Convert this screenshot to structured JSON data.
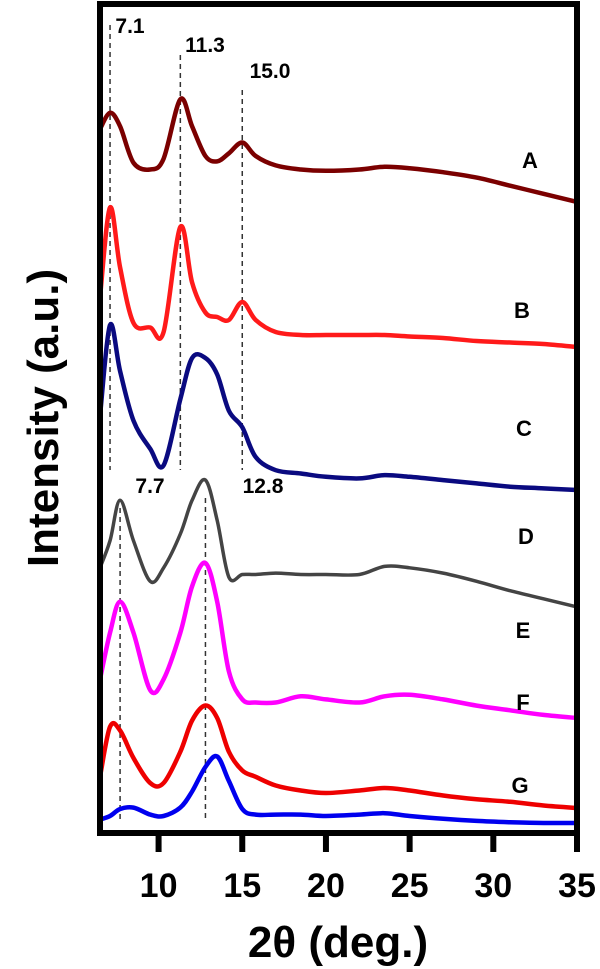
{
  "chart_data": {
    "type": "line",
    "title": "",
    "xlabel": "2θ (deg.)",
    "ylabel": "Intensity (a.u.)",
    "xlim": [
      6.5,
      35
    ],
    "xticks": [
      10,
      15,
      20,
      25,
      30,
      35
    ],
    "xtick_labels": [
      "10",
      "15",
      "20",
      "25",
      "30",
      "35"
    ],
    "yticks": [],
    "grid": false,
    "legend": "inline labels at right of each trace",
    "stacked_offset": true,
    "reference_lines": [
      {
        "x": 7.1,
        "label": "7.1",
        "style": "dashed",
        "spans": "A-C"
      },
      {
        "x": 11.3,
        "label": "11.3",
        "style": "dashed",
        "spans": "A-C"
      },
      {
        "x": 15.0,
        "label": "15.0",
        "style": "dashed",
        "spans": "A-C"
      },
      {
        "x": 7.7,
        "label": "7.7",
        "style": "dashed",
        "spans": "D-G"
      },
      {
        "x": 12.8,
        "label": "12.8",
        "style": "dashed",
        "spans": "D-G"
      }
    ],
    "x": [
      6.5,
      7.1,
      7.7,
      8.5,
      9.5,
      10.3,
      11.3,
      12.0,
      12.8,
      13.5,
      14.2,
      15.0,
      15.8,
      17,
      18.5,
      20,
      22,
      23.5,
      25,
      27,
      29,
      31,
      33,
      35
    ],
    "series": [
      {
        "name": "A",
        "color": "#7b0000",
        "values": [
          0.6,
          0.72,
          0.62,
          0.35,
          0.3,
          0.38,
          0.82,
          0.62,
          0.4,
          0.36,
          0.42,
          0.5,
          0.4,
          0.33,
          0.3,
          0.29,
          0.3,
          0.32,
          0.31,
          0.28,
          0.24,
          0.18,
          0.12,
          0.06
        ]
      },
      {
        "name": "B",
        "color": "#ff1a1a",
        "values": [
          0.35,
          0.95,
          0.55,
          0.18,
          0.15,
          0.12,
          0.82,
          0.45,
          0.25,
          0.22,
          0.2,
          0.32,
          0.2,
          0.12,
          0.1,
          0.1,
          0.1,
          0.1,
          0.09,
          0.08,
          0.06,
          0.05,
          0.04,
          0.02
        ]
      },
      {
        "name": "C",
        "color": "#0a0a80",
        "values": [
          0.45,
          1.0,
          0.72,
          0.42,
          0.25,
          0.15,
          0.55,
          0.8,
          0.8,
          0.7,
          0.48,
          0.38,
          0.2,
          0.12,
          0.1,
          0.08,
          0.07,
          0.09,
          0.08,
          0.06,
          0.04,
          0.02,
          0.01,
          0.0
        ]
      },
      {
        "name": "D",
        "color": "#444444",
        "values": [
          0.35,
          0.55,
          0.85,
          0.55,
          0.25,
          0.35,
          0.6,
          0.85,
          1.0,
          0.7,
          0.28,
          0.3,
          0.3,
          0.31,
          0.3,
          0.3,
          0.3,
          0.36,
          0.35,
          0.31,
          0.25,
          0.18,
          0.12,
          0.06
        ]
      },
      {
        "name": "E",
        "color": "#ff00ff",
        "values": [
          0.25,
          0.55,
          0.75,
          0.55,
          0.18,
          0.25,
          0.55,
          0.85,
          1.0,
          0.75,
          0.3,
          0.12,
          0.1,
          0.1,
          0.14,
          0.12,
          0.1,
          0.14,
          0.15,
          0.12,
          0.08,
          0.05,
          0.02,
          0.0
        ]
      },
      {
        "name": "F",
        "color": "#ee0000",
        "values": [
          0.25,
          0.65,
          0.62,
          0.4,
          0.2,
          0.2,
          0.45,
          0.7,
          0.82,
          0.72,
          0.45,
          0.3,
          0.25,
          0.18,
          0.14,
          0.12,
          0.14,
          0.16,
          0.14,
          0.1,
          0.07,
          0.05,
          0.02,
          0.0
        ]
      },
      {
        "name": "G",
        "color": "#0000ee",
        "values": [
          0.05,
          0.1,
          0.2,
          0.22,
          0.12,
          0.1,
          0.22,
          0.45,
          0.8,
          0.95,
          0.6,
          0.2,
          0.12,
          0.12,
          0.12,
          0.1,
          0.12,
          0.14,
          0.1,
          0.06,
          0.03,
          0.01,
          0.0,
          0.0
        ]
      }
    ],
    "peak_annotations": {
      "top_group": [
        "7.1",
        "11.3",
        "15.0"
      ],
      "bottom_group": [
        "7.7",
        "12.8"
      ]
    }
  }
}
